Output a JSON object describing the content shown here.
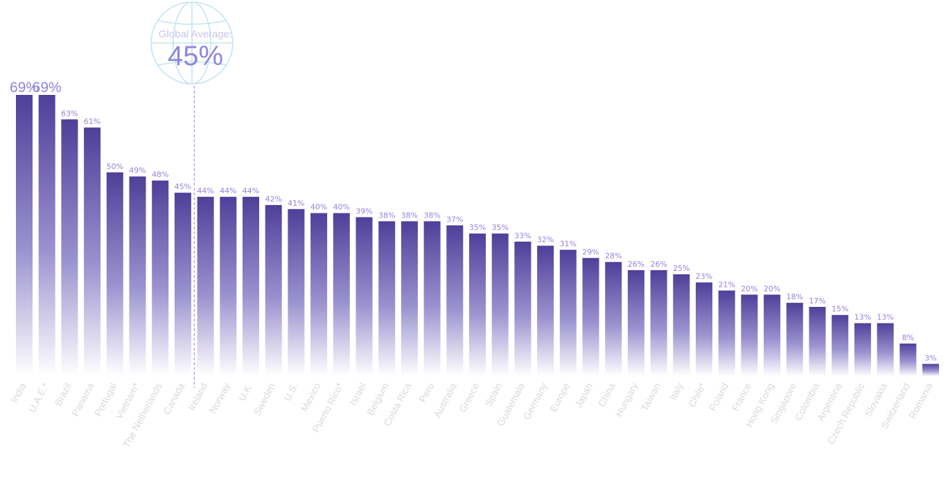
{
  "chart_data": {
    "type": "bar",
    "categories": [
      "India",
      "U.A.E.*",
      "Brazil",
      "Panama",
      "Portugal",
      "Vietnam*",
      "The Netherlands",
      "Canada",
      "Ireland",
      "Norway",
      "U.K.",
      "Sweden",
      "U.S.",
      "Mexico",
      "Puerto Rico*",
      "Israel",
      "Belgium",
      "Costa Rica",
      "Peru",
      "Australia",
      "Greece",
      "Spain",
      "Guatemala",
      "Germany",
      "Europe",
      "Japan",
      "China",
      "Hungary",
      "Taiwan",
      "Italy",
      "Chile*",
      "Poland",
      "France",
      "Hong Kong",
      "Singapore",
      "Colombia",
      "Argentina",
      "Czech Republic",
      "Slovakia",
      "Switzerland",
      "Romania"
    ],
    "values": [
      69,
      69,
      63,
      61,
      50,
      49,
      48,
      45,
      44,
      44,
      44,
      42,
      41,
      40,
      40,
      39,
      38,
      38,
      38,
      37,
      35,
      35,
      33,
      32,
      31,
      29,
      28,
      26,
      26,
      25,
      23,
      21,
      20,
      20,
      18,
      17,
      15,
      13,
      13,
      8,
      3
    ],
    "labels": [
      "69%",
      "69%",
      "63%",
      "61%",
      "50%",
      "49%",
      "48%",
      "45%",
      "44%",
      "44%",
      "44%",
      "42%",
      "41%",
      "40%",
      "40%",
      "39%",
      "38%",
      "38%",
      "38%",
      "37%",
      "35%",
      "35%",
      "33%",
      "32%",
      "31%",
      "29%",
      "28%",
      "26%",
      "26%",
      "25%",
      "23%",
      "21%",
      "20%",
      "20%",
      "18%",
      "17%",
      "15%",
      "13%",
      "13%",
      "8%",
      "3%"
    ],
    "ylim": [
      0,
      69
    ],
    "grid": false,
    "average": {
      "caption": "Global Average:",
      "value": 45,
      "label": "45%"
    },
    "colors": {
      "bar_top": "#4f3f99",
      "bar_bottom": "#ffffff",
      "label": "#8f86de",
      "category": "#d9d9de",
      "globe": "#c5e3f2",
      "avg_line": "#8f86de"
    }
  }
}
